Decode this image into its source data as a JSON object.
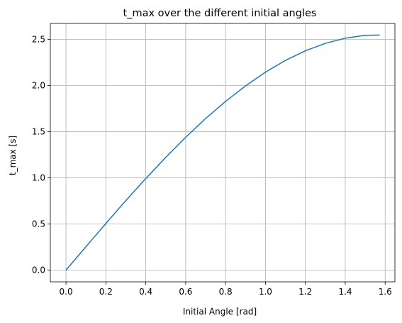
{
  "chart_data": {
    "type": "line",
    "title": "t_max over the different initial angles",
    "xlabel": "Initial Angle [rad]",
    "ylabel": "t_max [s]",
    "xlim": [
      -0.0785,
      1.649
    ],
    "ylim": [
      -0.127,
      2.674
    ],
    "xticks": [
      0.0,
      0.2,
      0.4,
      0.6,
      0.8,
      1.0,
      1.2,
      1.4,
      1.6
    ],
    "xtick_labels": [
      "0.0",
      "0.2",
      "0.4",
      "0.6",
      "0.8",
      "1.0",
      "1.2",
      "1.4",
      "1.6"
    ],
    "yticks": [
      0.0,
      0.5,
      1.0,
      1.5,
      2.0,
      2.5
    ],
    "ytick_labels": [
      "0.0",
      "0.5",
      "1.0",
      "1.5",
      "2.0",
      "2.5"
    ],
    "grid": true,
    "series": [
      {
        "color": "#1f77b4",
        "x": [
          0.0,
          0.1,
          0.2,
          0.3,
          0.4,
          0.5,
          0.6,
          0.7,
          0.8,
          0.9,
          1.0,
          1.1,
          1.2,
          1.3,
          1.4,
          1.5,
          1.5708
        ],
        "y": [
          0.0,
          0.254,
          0.506,
          0.754,
          0.993,
          1.222,
          1.44,
          1.643,
          1.829,
          1.997,
          2.146,
          2.273,
          2.377,
          2.458,
          2.514,
          2.545,
          2.548
        ]
      }
    ]
  }
}
